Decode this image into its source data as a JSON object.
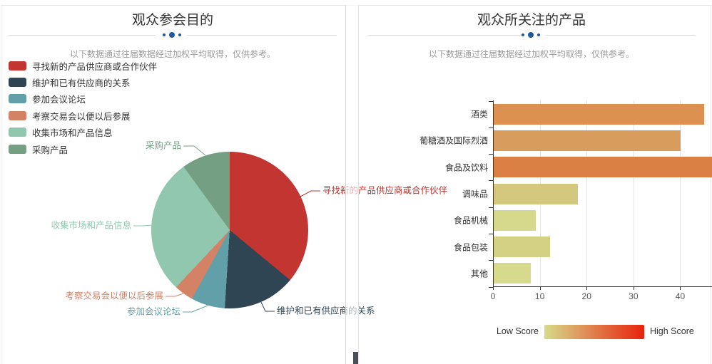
{
  "page": {
    "subtitle_note": "以下数据通过往届数据经过加权平均取得，仅供参考。"
  },
  "colors": {
    "accent_dot": "#2156a3",
    "divider_line": "#dcdcdc",
    "panel_border": "#e6e6e6",
    "axis_line": "#333333",
    "gridline": "#e0e3e8",
    "tick_label": "#555555",
    "title_text": "#333333",
    "subtitle_text": "#9b9b9b",
    "scrollbar_thumb": "#4a5059"
  },
  "left_panel": {
    "title": "观众参会目的",
    "subtitle": "以下数据通过往届数据经过加权平均取得，仅供参考。"
  },
  "right_panel": {
    "title": "观众所关注的产品",
    "subtitle": "以下数据通过往届数据经过加权平均取得，仅供参考。",
    "visualmap": {
      "low_label": "Low Score",
      "high_label": "High Score",
      "gradient": [
        "#d7da8b",
        "#e8220b"
      ]
    }
  },
  "chart_data": [
    {
      "type": "pie",
      "title": "观众参会目的",
      "subtitle": "以下数据通过往届数据经过加权平均取得，仅供参考。",
      "categories": [
        "寻找新的产品供应商或合作伙伴",
        "维护和已有供应商的关系",
        "参加会议论坛",
        "考察交易会以便以后参展",
        "收集市场和产品信息",
        "采购产品"
      ],
      "values": [
        36,
        15,
        7,
        4,
        28,
        10
      ],
      "unit": "percent",
      "colors": [
        "#c23531",
        "#2f4554",
        "#61a0a8",
        "#d48265",
        "#91c7ae",
        "#749f83"
      ],
      "legend_position": "top-left",
      "labels": "outside with leader lines, colored per slice",
      "start_angle_deg": 0,
      "direction": "clockwise"
    },
    {
      "type": "bar",
      "orientation": "horizontal",
      "title": "观众所关注的产品",
      "subtitle": "以下数据通过往届数据经过加权平均取得，仅供参考。",
      "categories": [
        "酒类",
        "葡糖酒及国际烈酒",
        "食品及饮料",
        "调味品",
        "食品机械",
        "食品包装",
        "其他"
      ],
      "values": [
        45,
        40,
        47,
        18,
        9,
        12,
        8
      ],
      "bar_colors": [
        "#dc9150",
        "#d89c5d",
        "#da8045",
        "#d3c87e",
        "#d6d98b",
        "#d4d184",
        "#d7da8d"
      ],
      "xlabel": "",
      "ylabel": "",
      "xlim": [
        0,
        47
      ],
      "x_ticks": [
        0,
        10,
        20,
        30,
        40
      ],
      "grid": "vertical gridlines on",
      "note_clipping": "食品及饮料 bar extends past right edge of panel",
      "visualmap_legend": {
        "low_label": "Low Score",
        "high_label": "High Score",
        "gradient": [
          "#d7da8b",
          "#e8220b"
        ],
        "position": "bottom-right"
      }
    }
  ]
}
